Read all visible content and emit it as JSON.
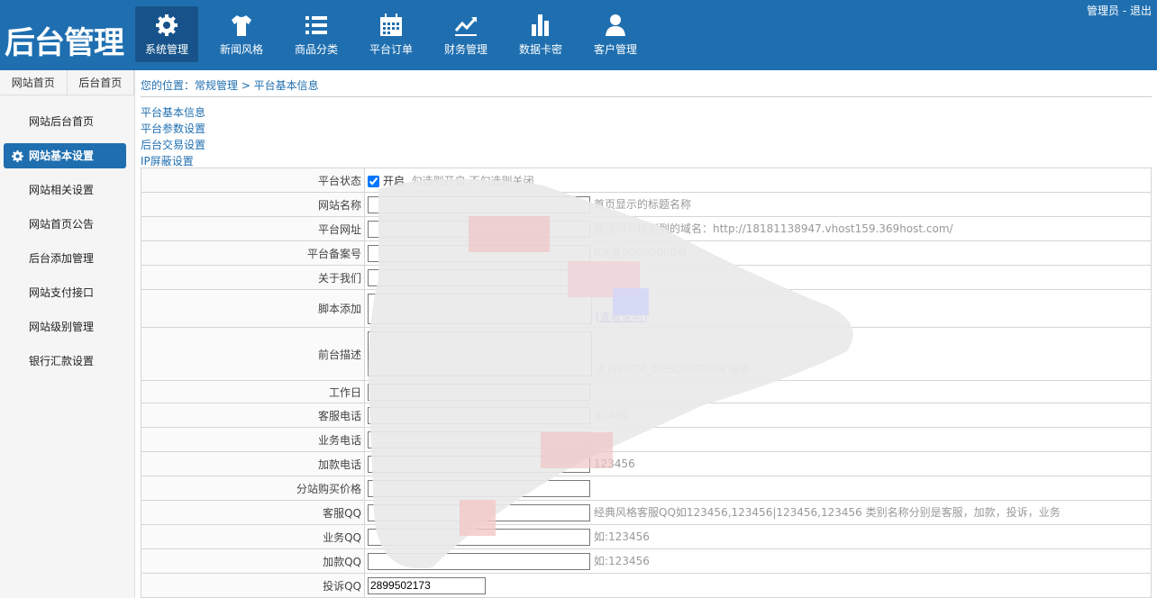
{
  "header": {
    "logo": "后台管理",
    "nav": [
      {
        "label": "系统管理",
        "icon": "gear-icon"
      },
      {
        "label": "新闻风格",
        "icon": "tshirt-icon"
      },
      {
        "label": "商品分类",
        "icon": "list-icon"
      },
      {
        "label": "平台订单",
        "icon": "calendar-icon"
      },
      {
        "label": "财务管理",
        "icon": "trend-chart-icon"
      },
      {
        "label": "数据卡密",
        "icon": "bar-chart-icon"
      },
      {
        "label": "客户管理",
        "icon": "user-icon"
      }
    ],
    "user": "管理员",
    "sep": " - ",
    "logout": "退出",
    "color": "#1f6fb0"
  },
  "sidebar": {
    "tabs": [
      "网站首页",
      "后台首页"
    ],
    "items": [
      "网站后台首页",
      "网站基本设置",
      "网站相关设置",
      "网站首页公告",
      "后台添加管理",
      "网站支付接口",
      "网站级别管理",
      "银行汇款设置"
    ]
  },
  "breadcrumb": "您的位置：常规管理 > 平台基本信息",
  "sublinks": [
    "平台基本信息",
    "平台参数设置",
    "后台交易设置",
    "IP屏蔽设置"
  ],
  "form": {
    "status": {
      "label": "平台状态",
      "check": "开启",
      "hint": "勾选则开启,不勾选则关闭"
    },
    "rows": [
      {
        "label": "网站名称",
        "hint": "首页显示的标题名称"
      },
      {
        "label": "平台网址",
        "hint": "建议填写检测到的域名：http://18181138947.vhost159.369host.com/"
      },
      {
        "label": "平台备案号",
        "hint": "ICP备00000000号"
      },
      {
        "label": "关于我们",
        "hint": ""
      }
    ],
    "script": {
      "label": "脚本添加",
      "link": "[查看说明]"
    },
    "desc": {
      "label": "前台描述",
      "hint": "主页META_DESCRIPTION 搜索"
    },
    "rows2": [
      {
        "label": "工作日",
        "hint": ""
      },
      {
        "label": "客服电话",
        "hint": "如:400"
      },
      {
        "label": "业务电话",
        "hint": ""
      },
      {
        "label": "加款电话",
        "hint": "123456"
      },
      {
        "label": "分站购买价格",
        "hint": ""
      },
      {
        "label": "客服QQ",
        "hint": "经典风格客服QQ如123456,123456|123456,123456 类别名称分别是客服，加款，投诉，业务"
      },
      {
        "label": "业务QQ",
        "hint": "如:123456"
      },
      {
        "label": "加款QQ",
        "hint": "如:123456"
      }
    ],
    "complaint": {
      "label": "投诉QQ",
      "value": "2899502173"
    }
  }
}
